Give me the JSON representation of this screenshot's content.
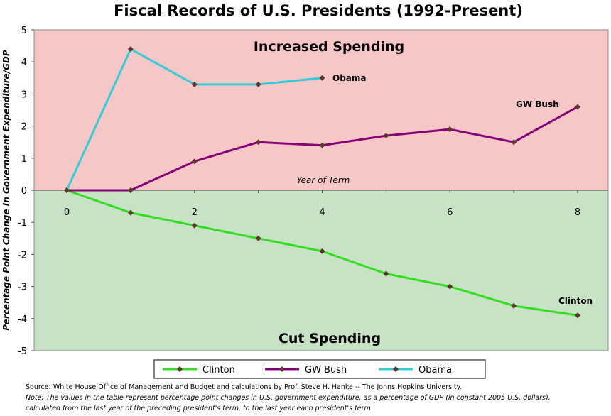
{
  "chart_data": {
    "type": "line",
    "title": "Fiscal Records of U.S. Presidents (1992-Present)",
    "ylabel": "Percentage Point Change In Government Expenditure/GDP",
    "xlabel": "Year of Term",
    "ylim": [
      -5,
      5
    ],
    "xlim": [
      0,
      8.2
    ],
    "yticks": [
      "-5",
      "-4",
      "-3",
      "-2",
      "-1",
      "0",
      "1",
      "2",
      "3",
      "4",
      "5"
    ],
    "xticks": [
      "0",
      "2",
      "4",
      "6",
      "8"
    ],
    "regions": {
      "upper": "Increased Spending",
      "lower": "Cut Spending"
    },
    "series": [
      {
        "name": "Clinton",
        "color": "#33dd22",
        "x": [
          0,
          1,
          2,
          3,
          4,
          5,
          6,
          7,
          8
        ],
        "values": [
          0,
          -0.7,
          -1.1,
          -1.5,
          -1.9,
          -2.6,
          -3.0,
          -3.6,
          -3.9
        ]
      },
      {
        "name": "GW Bush",
        "color": "#880077",
        "x": [
          0,
          1,
          2,
          3,
          4,
          5,
          6,
          7,
          8
        ],
        "values": [
          0,
          0,
          0.9,
          1.5,
          1.4,
          1.7,
          1.9,
          1.5,
          2.6
        ]
      },
      {
        "name": "Obama",
        "color": "#33ccd8",
        "x": [
          0,
          1,
          2,
          3,
          4
        ],
        "values": [
          0,
          4.4,
          3.3,
          3.3,
          3.5
        ]
      }
    ],
    "grid": false,
    "legend_position": "bottom",
    "colors": {
      "upper_region": "#f7c6c6",
      "lower_region": "#c8e2c6",
      "marker": "#5a3a2a"
    }
  },
  "notes": {
    "source": "Source: White House Office of Management and Budget and calculations by Prof. Steve H. Hanke -- The Johns Hopkins University.",
    "note_line1": "Note: The values in the table represent percentage point changes in U.S. government expenditure, as a percentage of GDP (in constant 2005 U.S. dollars),",
    "note_line2": "calculated from the last year of the preceding president's term, to the last year each president's term"
  }
}
